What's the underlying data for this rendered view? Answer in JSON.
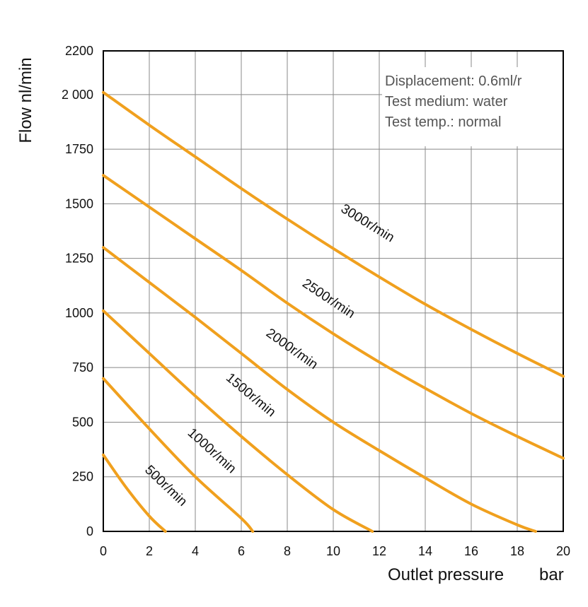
{
  "chart_data": {
    "type": "line",
    "title": "",
    "xlabel": "Outlet pressure",
    "xunit": "bar",
    "ylabel": "Flow nl/min",
    "xlim": [
      0,
      20
    ],
    "ylim": [
      0,
      2200
    ],
    "x_ticks": [
      0,
      2,
      4,
      6,
      8,
      10,
      12,
      14,
      16,
      18,
      20
    ],
    "y_ticks": [
      0,
      250,
      500,
      750,
      1000,
      1250,
      1500,
      1750,
      2000,
      2200
    ],
    "x_tick_labels": [
      "0",
      "2",
      "4",
      "6",
      "8",
      "10",
      "12",
      "14",
      "16",
      "18",
      "20"
    ],
    "y_tick_labels": [
      "0",
      "250",
      "500",
      "750",
      "1000",
      "1250",
      "1500",
      "1750",
      "2 000",
      "2200"
    ],
    "grid": true,
    "line_color": "#f0a01e",
    "annotations": [
      "Displacement: 0.6ml/r",
      "Test medium: water",
      "Test temp.: normal"
    ],
    "series": [
      {
        "name": "3000r/min",
        "x": [
          0,
          2,
          4,
          6,
          8,
          10,
          12,
          14,
          16,
          18,
          20
        ],
        "y": [
          2010,
          1860,
          1715,
          1570,
          1430,
          1295,
          1165,
          1040,
          925,
          815,
          710
        ]
      },
      {
        "name": "2500r/min",
        "x": [
          0,
          2,
          4,
          6,
          8,
          10,
          12,
          14,
          16,
          18,
          20
        ],
        "y": [
          1630,
          1485,
          1340,
          1195,
          1045,
          905,
          775,
          655,
          540,
          435,
          335
        ]
      },
      {
        "name": "2000r/min",
        "x": [
          0,
          2,
          4,
          6,
          8,
          10,
          12,
          14,
          16,
          18,
          18.8
        ],
        "y": [
          1300,
          1140,
          980,
          815,
          650,
          500,
          370,
          245,
          125,
          30,
          0
        ]
      },
      {
        "name": "1500r/min",
        "x": [
          0,
          2,
          4,
          6,
          8,
          10,
          11.7
        ],
        "y": [
          1010,
          815,
          620,
          435,
          260,
          100,
          0
        ]
      },
      {
        "name": "1000r/min",
        "x": [
          0,
          2,
          4,
          6,
          6.5
        ],
        "y": [
          700,
          470,
          250,
          60,
          0
        ]
      },
      {
        "name": "500r/min",
        "x": [
          0,
          1,
          2,
          2.7
        ],
        "y": [
          350,
          200,
          70,
          0
        ]
      }
    ],
    "curve_labels": [
      {
        "text": "3000r/min",
        "x": 11.4,
        "y": 1395
      },
      {
        "text": "2500r/min",
        "x": 9.7,
        "y": 1050
      },
      {
        "text": "2000r/min",
        "x": 8.1,
        "y": 820
      },
      {
        "text": "1500r/min",
        "x": 6.3,
        "y": 610
      },
      {
        "text": "1000r/min",
        "x": 4.6,
        "y": 355
      },
      {
        "text": "500r/min",
        "x": 2.6,
        "y": 195
      }
    ]
  }
}
